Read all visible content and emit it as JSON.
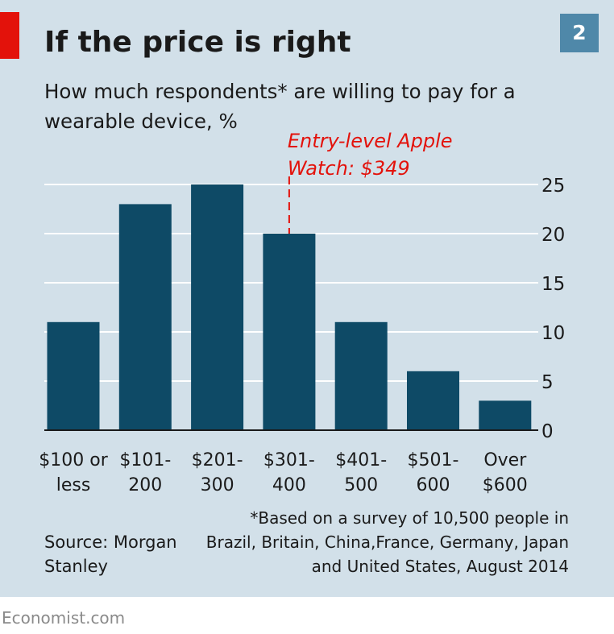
{
  "title": "If the price is right",
  "badge": "2",
  "subtitle": "How much respondents* are willing to pay for a wearable device, %",
  "source": "Source: Morgan Stanley",
  "footnote": "*Based on a survey of 10,500 people in Brazil, Britain, China,France, Germany, Japan and United States, August 2014",
  "brand": "Economist.com",
  "colors": {
    "bar": "#0e4a66",
    "panel": "#d2e0e9",
    "accent": "#e3120b",
    "badge": "#4f88a9"
  },
  "chart_data": {
    "type": "bar",
    "categories": [
      [
        "$100 or",
        "less"
      ],
      [
        "$101-",
        "200"
      ],
      [
        "$201-",
        "300"
      ],
      [
        "$301-",
        "400"
      ],
      [
        "$401-",
        "500"
      ],
      [
        "$501-",
        "600"
      ],
      [
        "Over",
        "$600"
      ]
    ],
    "values": [
      11,
      23,
      25,
      20,
      11,
      6,
      3
    ],
    "ylim": [
      0,
      25
    ],
    "yticks": [
      0,
      5,
      10,
      15,
      20,
      25
    ],
    "grid": true,
    "axis_position": "right",
    "annotation": {
      "text": [
        "Entry-level Apple",
        "Watch: $349"
      ],
      "category_index": 3,
      "color": "#e3120b"
    }
  }
}
